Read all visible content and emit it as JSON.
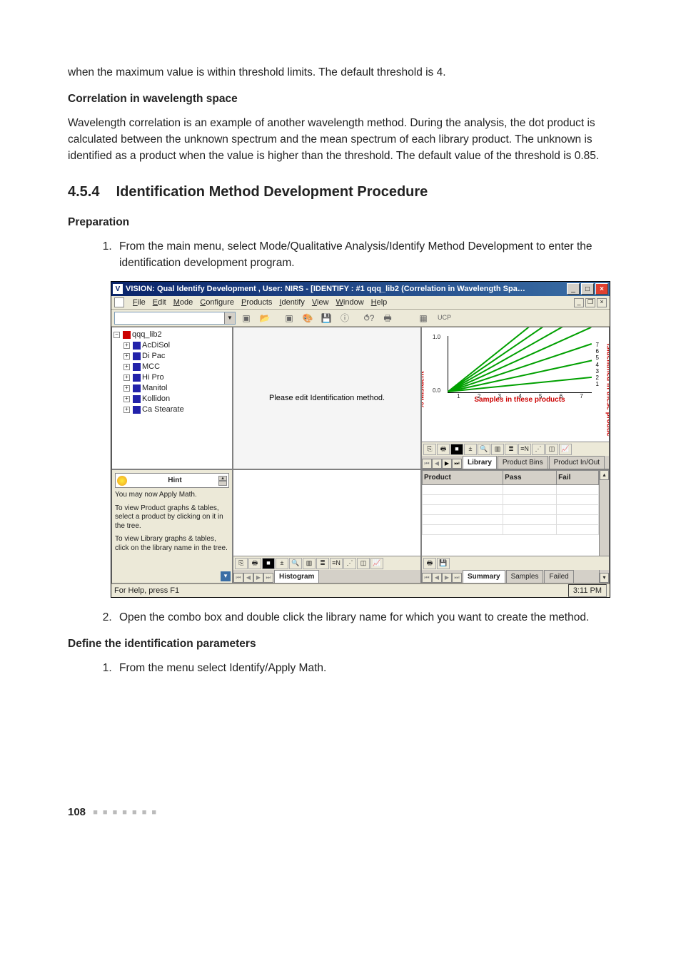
{
  "intro": {
    "p1": "when the maximum value is within threshold limits. The default threshold is 4.",
    "sub1": "Correlation in wavelength space",
    "p2": "Wavelength correlation is an example of another wavelength method. During the analysis, the dot product is calculated between the unknown spectrum and the mean spectrum of each library product. The unknown is identified as a product when the value is higher than the threshold. The default value of the threshold is 0.85."
  },
  "section": {
    "number": "4.5.4",
    "title": "Identification Method Development Procedure",
    "prep_label": "Preparation",
    "step1": "From the main menu, select Mode/Qualitative Analysis/Identify Method Development to enter the identification development program.",
    "step2": "Open the combo box and double click the library name for which you want to create the method.",
    "define_label": "Define the identification parameters",
    "define_step1": "From the menu select Identify/Apply Math."
  },
  "screenshot": {
    "title": "VISION: Qual Identify Development , User: NIRS - [IDENTIFY : #1 qqq_lib2 (Correlation in Wavelength Spa…",
    "menus": [
      "File",
      "Edit",
      "Mode",
      "Configure",
      "Products",
      "Identify",
      "View",
      "Window",
      "Help"
    ],
    "toolbar_ucp": "UCP",
    "tree": {
      "root": "qqq_lib2",
      "items": [
        "AcDiSol",
        "Di Pac",
        "MCC",
        "Hi Pro",
        "Manitol",
        "Kollidon",
        "Ca Stearate"
      ]
    },
    "center_msg": "Please edit Identification method.",
    "hint": {
      "title": "Hint",
      "lines": [
        "You may now Apply Math.",
        "To view Product graphs & tables, select a product by clicking on it in the tree.",
        "To view Library graphs & tables, click on the library name in the tree."
      ]
    },
    "chart": {
      "ylabel": "% Misident",
      "rlabel": "isidentified in these produc",
      "xlabel": "Samples in these products",
      "yticks": [
        "1.0",
        "0.0"
      ],
      "xticks": [
        "1",
        "2",
        "3",
        "4",
        "5",
        "6",
        "7"
      ],
      "series_lines": [
        1,
        2,
        3,
        4,
        5,
        6,
        7
      ],
      "series_color": "#00a000",
      "axis_color": "#000000",
      "label_color": "#c00000"
    },
    "tabs_right_top": [
      "Library",
      "Product Bins",
      "Product In/Out"
    ],
    "tabs_center_bot": [
      "Histogram"
    ],
    "tabs_right_bot": [
      "Summary",
      "Samples",
      "Failed"
    ],
    "table": {
      "columns": [
        "Product",
        "Pass",
        "Fail"
      ],
      "rows": [
        [
          "",
          "",
          ""
        ],
        [
          "",
          "",
          ""
        ],
        [
          "",
          "",
          ""
        ],
        [
          "",
          "",
          ""
        ],
        [
          "",
          "",
          ""
        ]
      ]
    },
    "status": {
      "help": "For Help, press F1",
      "time": "3:11 PM"
    },
    "colors": {
      "titlebar_start": "#0a246a",
      "titlebar_end": "#3a6ea5",
      "face": "#ece9d8",
      "panel_bg": "#d4d0c8",
      "close_btn": "#e04030"
    }
  },
  "page_number": "108"
}
